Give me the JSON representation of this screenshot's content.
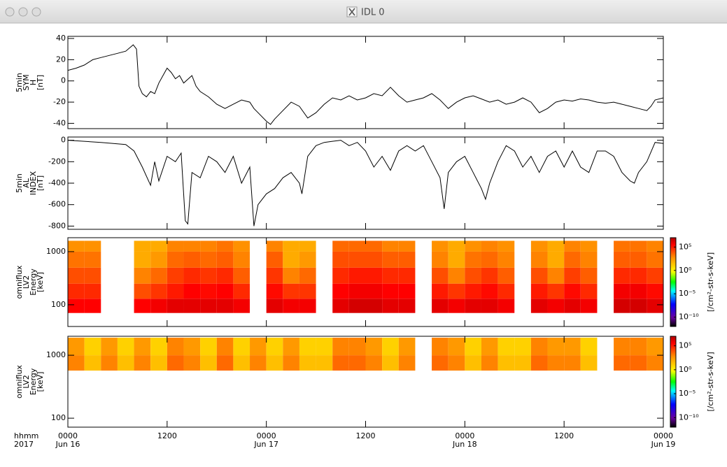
{
  "window": {
    "title": "IDL 0"
  },
  "chart_data": [
    {
      "type": "line",
      "ylabel": [
        "5min",
        "SYM",
        "H",
        "[nT]"
      ],
      "color": "#000000",
      "xlim": [
        0,
        72
      ],
      "xticks": [
        0,
        12,
        24,
        36,
        48,
        60,
        72
      ],
      "ylim": [
        -45,
        42
      ],
      "yticks": [
        -40,
        -20,
        0,
        20,
        40
      ],
      "x": [
        0,
        1,
        2,
        3,
        4,
        5,
        6,
        7,
        7.9,
        8.3,
        8.6,
        9,
        9.5,
        10,
        10.5,
        11,
        11.5,
        12,
        12.5,
        13,
        13.5,
        14,
        15,
        15.5,
        16,
        17,
        18,
        19,
        20,
        21,
        22,
        22.5,
        23,
        24,
        24.5,
        25,
        26,
        27,
        28,
        29,
        30,
        31,
        32,
        33,
        34,
        35,
        36,
        37,
        38,
        39,
        40,
        41,
        42,
        43,
        44,
        45,
        46,
        47,
        48,
        49,
        50,
        51,
        52,
        53,
        54,
        55,
        56,
        57,
        58,
        59,
        60,
        61,
        62,
        63,
        64,
        65,
        66,
        67,
        68,
        69,
        70,
        70.5,
        71,
        72
      ],
      "values": [
        10,
        12,
        15,
        20,
        22,
        24,
        26,
        28,
        34,
        30,
        -5,
        -12,
        -15,
        -10,
        -12,
        -2,
        5,
        12,
        8,
        2,
        5,
        -2,
        5,
        -5,
        -10,
        -15,
        -22,
        -26,
        -22,
        -18,
        -20,
        -26,
        -30,
        -38,
        -41,
        -36,
        -28,
        -20,
        -24,
        -35,
        -30,
        -22,
        -16,
        -18,
        -14,
        -18,
        -16,
        -12,
        -14,
        -6,
        -14,
        -20,
        -18,
        -16,
        -12,
        -18,
        -26,
        -20,
        -16,
        -14,
        -17,
        -20,
        -18,
        -22,
        -20,
        -16,
        -20,
        -30,
        -26,
        -20,
        -18,
        -19,
        -17,
        -18,
        -20,
        -21,
        -20,
        -22,
        -24,
        -26,
        -28,
        -24,
        -18,
        -16
      ]
    },
    {
      "type": "line",
      "ylabel": [
        "5min",
        "AL",
        "INDEX",
        "[nT]"
      ],
      "color": "#000000",
      "xlim": [
        0,
        72
      ],
      "xticks": [
        0,
        12,
        24,
        36,
        48,
        60,
        72
      ],
      "ylim": [
        -830,
        30
      ],
      "yticks": [
        -800,
        -600,
        -400,
        -200,
        0
      ],
      "x": [
        0,
        4,
        7,
        8,
        9,
        10,
        10.5,
        11,
        12,
        13,
        13.7,
        14.2,
        14.5,
        15,
        16,
        17,
        18,
        19,
        20,
        21,
        22,
        22.5,
        23,
        24,
        25,
        26,
        27,
        28,
        28.3,
        29,
        30,
        31,
        32,
        33,
        34,
        35,
        36,
        37,
        38,
        39,
        40,
        41,
        42,
        43,
        44,
        45,
        45.5,
        46,
        47,
        48,
        49,
        50,
        50.5,
        51,
        52,
        53,
        54,
        55,
        56,
        57,
        58,
        59,
        60,
        61,
        62,
        63,
        64,
        65,
        66,
        67,
        68,
        68.5,
        69,
        70,
        71,
        72
      ],
      "values": [
        0,
        -20,
        -40,
        -100,
        -250,
        -420,
        -200,
        -380,
        -150,
        -200,
        -120,
        -750,
        -780,
        -300,
        -350,
        -150,
        -200,
        -300,
        -150,
        -400,
        -250,
        -800,
        -600,
        -500,
        -450,
        -350,
        -300,
        -400,
        -500,
        -150,
        -50,
        -20,
        -10,
        0,
        -50,
        -20,
        -100,
        -250,
        -150,
        -280,
        -100,
        -50,
        -100,
        -50,
        -200,
        -350,
        -640,
        -300,
        -200,
        -150,
        -300,
        -450,
        -550,
        -400,
        -200,
        -50,
        -100,
        -250,
        -150,
        -300,
        -150,
        -100,
        -250,
        -100,
        -250,
        -300,
        -100,
        -100,
        -150,
        -300,
        -380,
        -400,
        -300,
        -200,
        -20,
        -30
      ]
    },
    {
      "type": "heatmap",
      "ylabel": [
        "omniflux",
        "LV2",
        "Energy",
        "[keV]"
      ],
      "ylog": true,
      "xlim": [
        0,
        72
      ],
      "xticks": [
        0,
        12,
        24,
        36,
        48,
        60,
        72
      ],
      "ylim": [
        39,
        1830
      ],
      "yticks": [
        100,
        1000
      ],
      "xbins": [
        0,
        2,
        4,
        6,
        8,
        10,
        12,
        14,
        16,
        18,
        20,
        22,
        24,
        26,
        28,
        30,
        32,
        34,
        36,
        38,
        40,
        42,
        44,
        46,
        48,
        50,
        52,
        54,
        56,
        58,
        60,
        62,
        64,
        66,
        68,
        70,
        72
      ],
      "ybins": [
        70,
        130,
        250,
        500,
        1000,
        1600
      ],
      "values": [
        [
          300000.0,
          50000.0,
          10000.0,
          2000.0,
          500.0
        ],
        [
          300000.0,
          50000.0,
          10000.0,
          2000.0,
          500.0
        ],
        null,
        null,
        [
          300000.0,
          10000.0,
          1000.0,
          100.0,
          100.0
        ],
        [
          500000.0,
          30000.0,
          3000.0,
          300.0,
          100.0
        ],
        [
          1000000.0,
          100000.0,
          20000.0,
          3000.0,
          1000.0
        ],
        [
          1000000.0,
          300000.0,
          50000.0,
          5000.0,
          1000.0
        ],
        [
          1000000.0,
          200000.0,
          30000.0,
          3000.0,
          1000.0
        ],
        [
          1000000.0,
          300000.0,
          50000.0,
          5000.0,
          2000.0
        ],
        [
          500000.0,
          50000.0,
          5000.0,
          1000.0,
          500.0
        ],
        null,
        [
          1000000.0,
          200000.0,
          30000.0,
          5000.0,
          1000.0
        ],
        [
          500000.0,
          30000.0,
          1000.0,
          100.0,
          100.0
        ],
        [
          500000.0,
          30000.0,
          3000.0,
          300.0,
          100.0
        ],
        null,
        [
          1000000.0,
          300000.0,
          50000.0,
          10000.0,
          3000.0
        ],
        [
          2000000.0,
          500000.0,
          100000.0,
          10000.0,
          3000.0
        ],
        [
          2000000.0,
          500000.0,
          100000.0,
          10000.0,
          3000.0
        ],
        [
          1000000.0,
          300000.0,
          50000.0,
          5000.0,
          1000.0
        ],
        [
          1000000.0,
          300000.0,
          50000.0,
          5000.0,
          1000.0
        ],
        null,
        [
          1000000.0,
          100000.0,
          10000.0,
          1000.0,
          500.0
        ],
        [
          500000.0,
          30000.0,
          1000.0,
          100.0,
          100.0
        ],
        [
          1000000.0,
          100000.0,
          10000.0,
          2000.0,
          500.0
        ],
        [
          1000000.0,
          200000.0,
          30000.0,
          3000.0,
          1000.0
        ],
        [
          500000.0,
          50000.0,
          5000.0,
          1000.0,
          500.0
        ],
        null,
        [
          1000000.0,
          100000.0,
          10000.0,
          1000.0,
          500.0
        ],
        [
          500000.0,
          30000.0,
          1000.0,
          100.0,
          100.0
        ],
        [
          1000000.0,
          200000.0,
          20000.0,
          3000.0,
          1000.0
        ],
        [
          500000.0,
          50000.0,
          5000.0,
          1000.0,
          500.0
        ],
        null,
        [
          2000000.0,
          500000.0,
          50000.0,
          5000.0,
          2000.0
        ],
        [
          2000000.0,
          500000.0,
          50000.0,
          5000.0,
          2000.0
        ],
        [
          1000000.0,
          200000.0,
          20000.0,
          2000.0,
          1000.0
        ]
      ],
      "clim": [
        1e-12,
        10000000.0
      ],
      "cticks": [
        {
          "value": 100000.0,
          "label": "10⁵"
        },
        {
          "value": 1,
          "label": "10⁰"
        },
        {
          "value": 1e-05,
          "label": "10⁻⁵"
        },
        {
          "value": 1e-10,
          "label": "10⁻¹⁰"
        }
      ],
      "colorbar_label": "[/cm²-str-s-keV]"
    },
    {
      "type": "heatmap",
      "ylabel": [
        "omniflux",
        "LV2",
        "Energy",
        "[keV]"
      ],
      "ylog": true,
      "xlim": [
        0,
        72
      ],
      "xticks": [
        {
          "value": 0,
          "label": "0000"
        },
        {
          "value": 12,
          "label": "1200"
        },
        {
          "value": 24,
          "label": "0000"
        },
        {
          "value": 36,
          "label": "1200"
        },
        {
          "value": 48,
          "label": "0000"
        },
        {
          "value": 60,
          "label": "1200"
        },
        {
          "value": 72,
          "label": "0000"
        }
      ],
      "xtick_dates": [
        "Jun 16",
        null,
        "Jun 17",
        null,
        "Jun 18",
        null,
        "Jun 19"
      ],
      "xaxis_labels": [
        "hhmm",
        "2017"
      ],
      "ylim": [
        72,
        2000
      ],
      "yticks": [
        100,
        1000
      ],
      "xbins": [
        0,
        2,
        4,
        6,
        8,
        10,
        12,
        14,
        16,
        18,
        20,
        22,
        24,
        26,
        28,
        30,
        32,
        34,
        36,
        38,
        40,
        42,
        44,
        46,
        48,
        50,
        52,
        54,
        56,
        58,
        60,
        62,
        64,
        66,
        68,
        70,
        72
      ],
      "ybins": [
        570,
        1000,
        1900
      ],
      "values": [
        [
          1000.0,
          300.0
        ],
        [
          30,
          10
        ],
        [
          1000.0,
          300.0
        ],
        [
          30,
          10
        ],
        [
          1000.0,
          300.0
        ],
        [
          30,
          10
        ],
        [
          3000.0,
          1000.0
        ],
        [
          1000.0,
          300.0
        ],
        [
          30,
          10
        ],
        [
          3000.0,
          1000.0
        ],
        [
          30,
          10
        ],
        [
          1000.0,
          300.0
        ],
        [
          30,
          10
        ],
        [
          1000.0,
          300.0
        ],
        [
          30,
          10
        ],
        [
          30,
          10
        ],
        [
          3000.0,
          1000.0
        ],
        [
          3000.0,
          1000.0
        ],
        [
          1000.0,
          300.0
        ],
        [
          30,
          10
        ],
        [
          1000.0,
          300.0
        ],
        null,
        [
          3000.0,
          1000.0
        ],
        [
          1000.0,
          300.0
        ],
        [
          30,
          10
        ],
        [
          1000.0,
          300.0
        ],
        [
          30,
          10
        ],
        [
          30,
          10
        ],
        [
          3000.0,
          1000.0
        ],
        [
          1000.0,
          300.0
        ],
        [
          1000.0,
          300.0
        ],
        [
          30,
          10
        ],
        null,
        [
          3000.0,
          1000.0
        ],
        [
          3000.0,
          1000.0
        ],
        [
          1000.0,
          300.0
        ]
      ],
      "clim": [
        1e-12,
        10000000.0
      ],
      "cticks": [
        {
          "value": 100000.0,
          "label": "10⁵"
        },
        {
          "value": 1,
          "label": "10⁰"
        },
        {
          "value": 1e-05,
          "label": "10⁻⁵"
        },
        {
          "value": 1e-10,
          "label": "10⁻¹⁰"
        }
      ],
      "colorbar_label": "[/cm²-str-s-keV]"
    }
  ]
}
